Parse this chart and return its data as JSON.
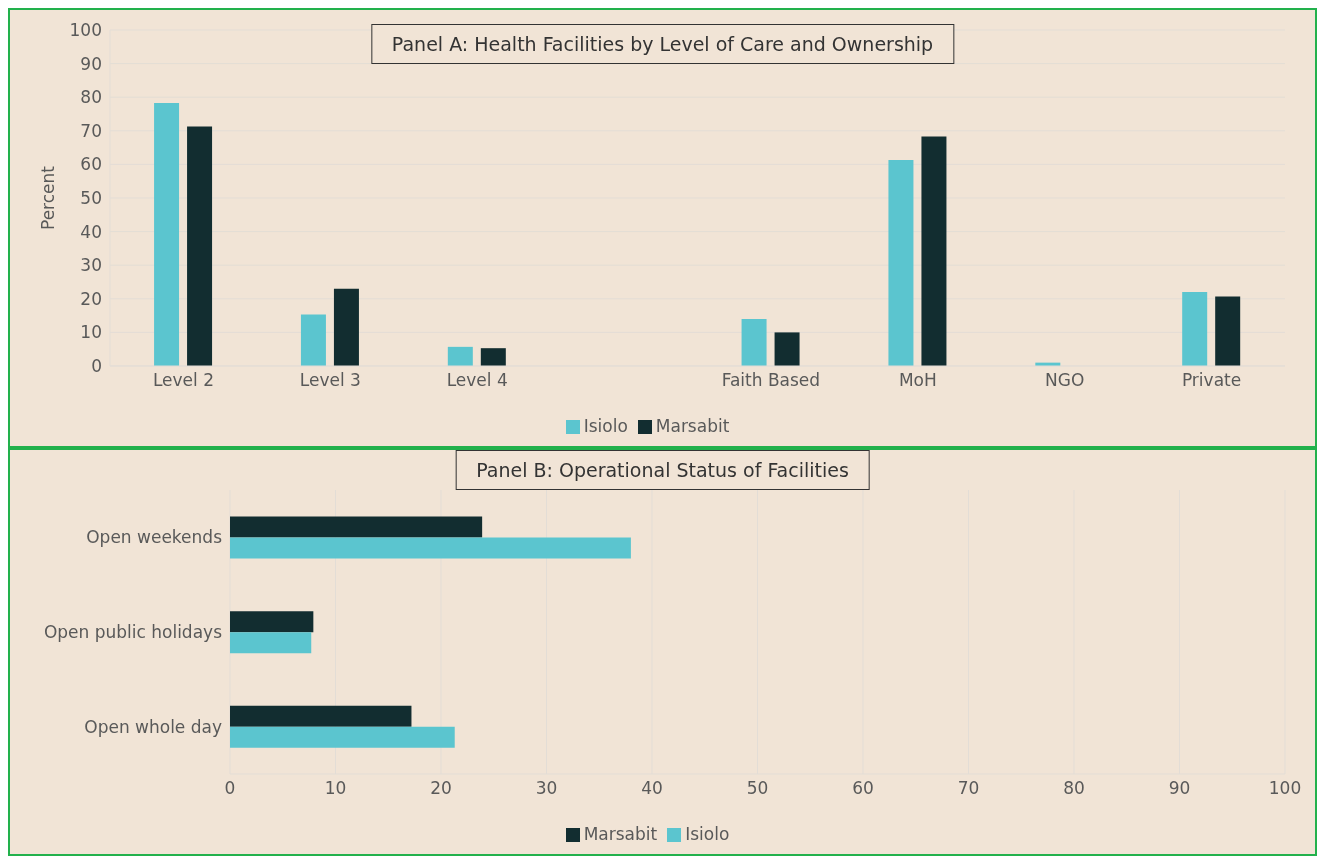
{
  "chart_data": [
    {
      "type": "bar",
      "title": "Panel A: Health Facilities by Level of Care and Ownership",
      "ylabel": "Percent",
      "categories": [
        "Level 2",
        "Level 3",
        "Level 4",
        null,
        "Faith Based",
        "MoH",
        "NGO",
        "Private"
      ],
      "series": [
        {
          "name": "Isiolo",
          "color": "#5bc5cf",
          "values": [
            78.3,
            15.3,
            5.7,
            null,
            14,
            61.3,
            1,
            22
          ]
        },
        {
          "name": "Marsabit",
          "color": "#122d30",
          "values": [
            71.3,
            23,
            5.3,
            null,
            10,
            68.3,
            0,
            20.7
          ]
        }
      ],
      "ylim": [
        0,
        100
      ],
      "yticks": [
        0,
        10,
        20,
        30,
        40,
        50,
        60,
        70,
        80,
        90,
        100
      ],
      "grid": "y",
      "legend": "bottom"
    },
    {
      "type": "bar",
      "orientation": "horizontal",
      "title": "Panel B: Operational Status of Facilities",
      "categories": [
        "Open weekends",
        "Open public holidays",
        "Open whole day"
      ],
      "series": [
        {
          "name": "Marsabit",
          "color": "#122d30",
          "values": [
            23.9,
            7.9,
            17.2
          ]
        },
        {
          "name": "Isiolo",
          "color": "#5bc5cf",
          "values": [
            38,
            7.7,
            21.3
          ]
        }
      ],
      "xlim": [
        0,
        100
      ],
      "xticks": [
        0,
        10,
        20,
        30,
        40,
        50,
        60,
        70,
        80,
        90,
        100
      ],
      "grid": "x",
      "legend": "bottom"
    }
  ]
}
